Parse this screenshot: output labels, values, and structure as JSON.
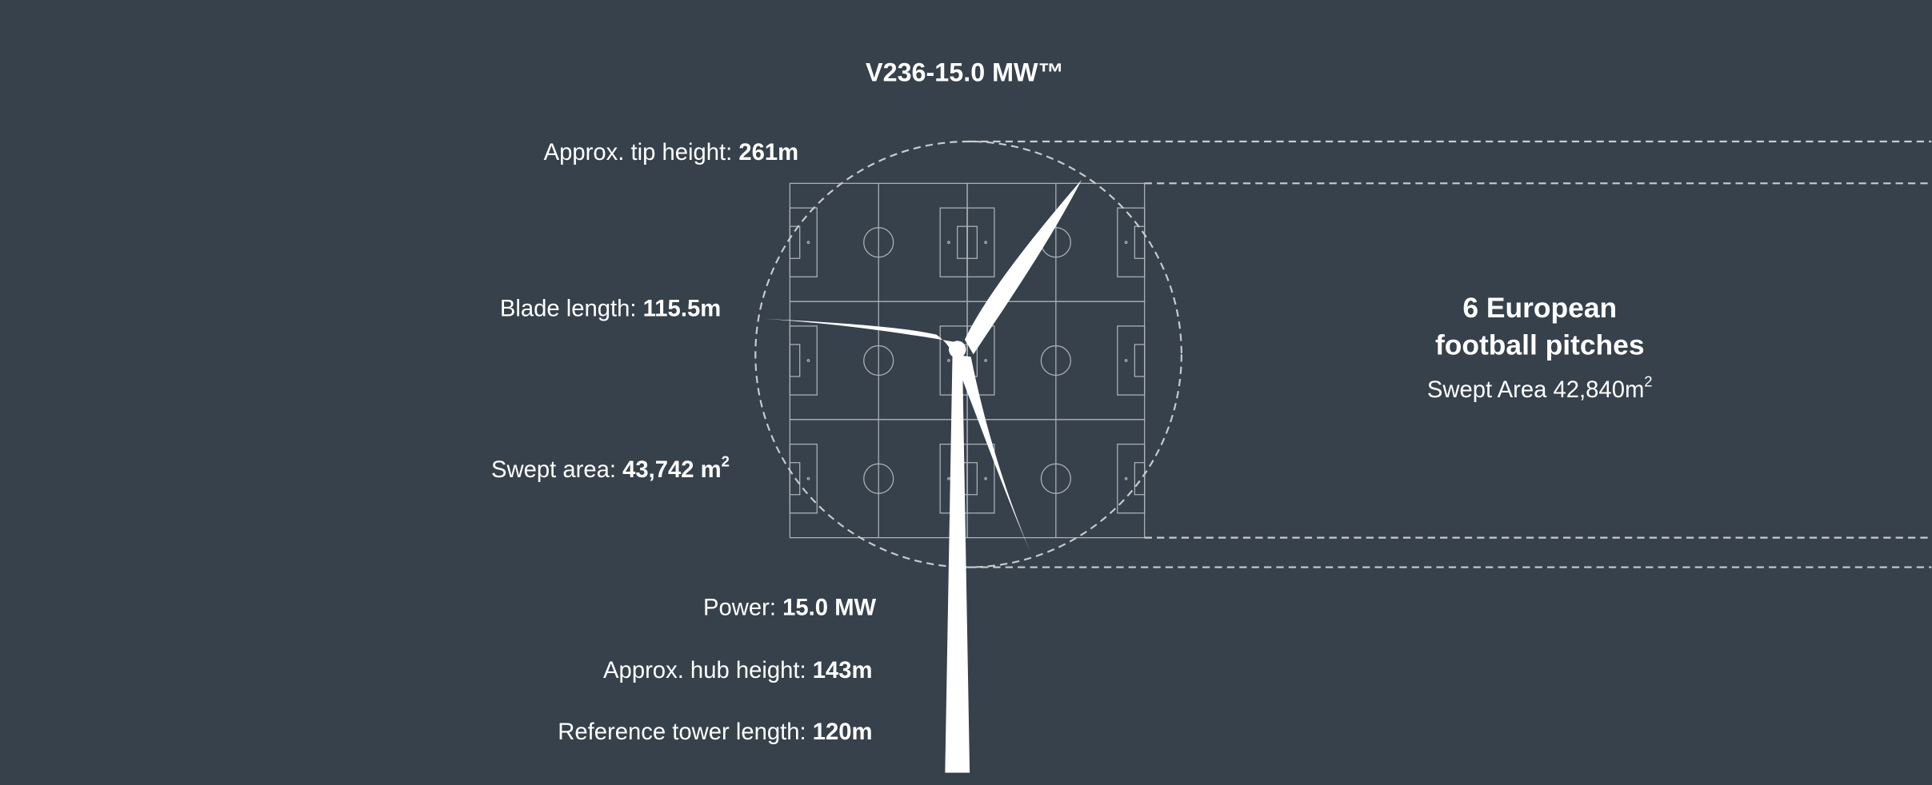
{
  "title": "V236-15.0 MW™",
  "specs": [
    {
      "label": "Approx. tip height:",
      "value": "261m"
    },
    {
      "label": "Blade length:",
      "value": "115.5m"
    },
    {
      "label": "Swept area:",
      "value": "43,742 m",
      "sup": "2"
    },
    {
      "label": "Power:",
      "value": "15.0 MW"
    },
    {
      "label": "Approx. hub height:",
      "value": "143m"
    },
    {
      "label": "Reference tower length:",
      "value": "120m"
    }
  ],
  "comparison": {
    "title_lines": [
      "6 European",
      "football pitches"
    ],
    "caption": "Swept Area 42,840m",
    "caption_sup": "2"
  }
}
